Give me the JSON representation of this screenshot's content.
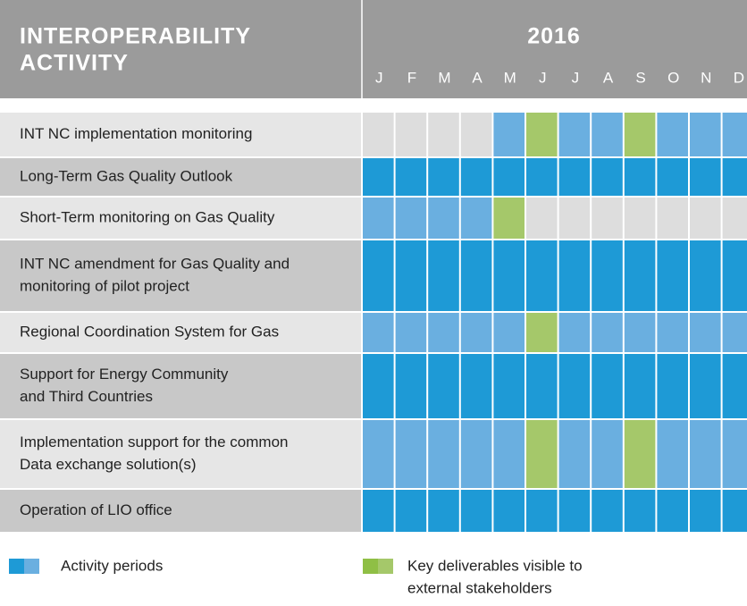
{
  "header": {
    "title_lines": [
      "INTEROPERABILITY",
      "ACTIVITY"
    ],
    "year": "2016",
    "months": [
      "J",
      "F",
      "M",
      "A",
      "M",
      "J",
      "J",
      "A",
      "S",
      "O",
      "N",
      "D"
    ]
  },
  "rows": [
    {
      "label_lines": [
        "INT NC implementation monitoring"
      ],
      "cells": [
        "#dddddd",
        "#dddddd",
        "#dddddd",
        "#dddddd",
        "#6aafe0",
        "#a5c86a",
        "#6aafe0",
        "#6aafe0",
        "#a5c86a",
        "#6aafe0",
        "#6aafe0",
        "#6aafe0"
      ]
    },
    {
      "label_lines": [
        "Long-Term Gas Quality Outlook"
      ],
      "cells": [
        "#1e9ad6",
        "#1e9ad6",
        "#1e9ad6",
        "#1e9ad6",
        "#1e9ad6",
        "#1e9ad6",
        "#1e9ad6",
        "#1e9ad6",
        "#1e9ad6",
        "#1e9ad6",
        "#1e9ad6",
        "#1e9ad6"
      ]
    },
    {
      "label_lines": [
        "Short-Term monitoring on Gas Quality"
      ],
      "cells": [
        "#6aafe0",
        "#6aafe0",
        "#6aafe0",
        "#6aafe0",
        "#a5c86a",
        "#dddddd",
        "#dddddd",
        "#dddddd",
        "#dddddd",
        "#dddddd",
        "#dddddd",
        "#dddddd"
      ]
    },
    {
      "label_lines": [
        "INT NC amendment for Gas Quality and",
        "monitoring of pilot project"
      ],
      "cells": [
        "#1e9ad6",
        "#1e9ad6",
        "#1e9ad6",
        "#1e9ad6",
        "#1e9ad6",
        "#1e9ad6",
        "#1e9ad6",
        "#1e9ad6",
        "#1e9ad6",
        "#1e9ad6",
        "#1e9ad6",
        "#1e9ad6"
      ]
    },
    {
      "label_lines": [
        "Regional Coordination System for Gas"
      ],
      "cells": [
        "#6aafe0",
        "#6aafe0",
        "#6aafe0",
        "#6aafe0",
        "#6aafe0",
        "#a5c86a",
        "#6aafe0",
        "#6aafe0",
        "#6aafe0",
        "#6aafe0",
        "#6aafe0",
        "#6aafe0"
      ]
    },
    {
      "label_lines": [
        "Support for Energy Community",
        "and Third Countries"
      ],
      "cells": [
        "#1e9ad6",
        "#1e9ad6",
        "#1e9ad6",
        "#1e9ad6",
        "#1e9ad6",
        "#1e9ad6",
        "#1e9ad6",
        "#1e9ad6",
        "#1e9ad6",
        "#1e9ad6",
        "#1e9ad6",
        "#1e9ad6"
      ]
    },
    {
      "label_lines": [
        "Implementation support for the common",
        "Data exchange solution(s)"
      ],
      "cells": [
        "#6aafe0",
        "#6aafe0",
        "#6aafe0",
        "#6aafe0",
        "#6aafe0",
        "#a5c86a",
        "#6aafe0",
        "#6aafe0",
        "#a5c86a",
        "#6aafe0",
        "#6aafe0",
        "#6aafe0"
      ]
    },
    {
      "label_lines": [
        "Operation of LIO office"
      ],
      "cells": [
        "#1e9ad6",
        "#1e9ad6",
        "#1e9ad6",
        "#1e9ad6",
        "#1e9ad6",
        "#1e9ad6",
        "#1e9ad6",
        "#1e9ad6",
        "#1e9ad6",
        "#1e9ad6",
        "#1e9ad6",
        "#1e9ad6"
      ]
    }
  ],
  "legend": [
    {
      "label_lines": [
        "Activity periods"
      ],
      "colors": [
        "#1e9ad6",
        "#6aafe0"
      ]
    },
    {
      "label_lines": [
        "Key deliverables visible to",
        "external stakeholders"
      ],
      "colors": [
        "#8fbf45",
        "#a5c86a"
      ]
    }
  ]
}
